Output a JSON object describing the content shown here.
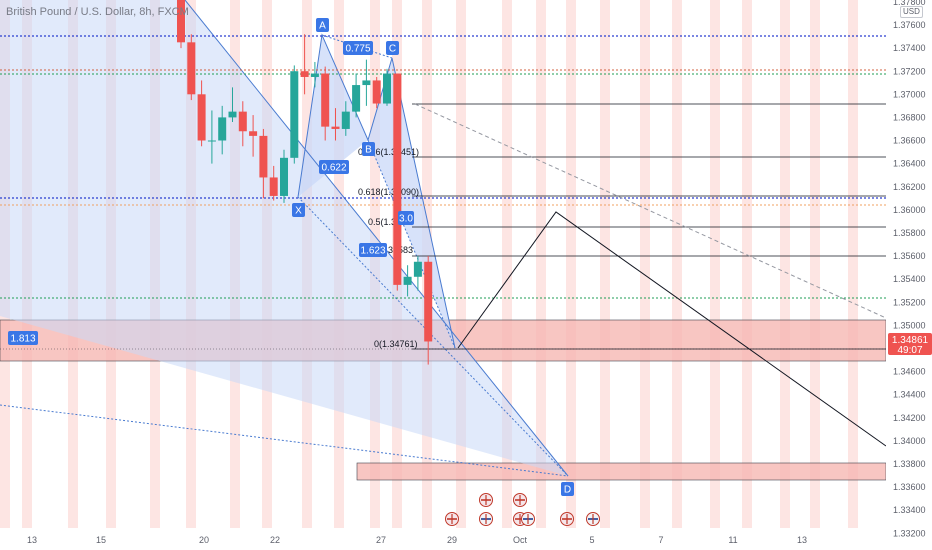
{
  "header": {
    "symbol": "British Pound / U.S. Dollar, 8h, FXCM",
    "currency": "USD"
  },
  "colors": {
    "bull": "#26a69a",
    "bear": "#ef5350",
    "pattern_fill": "#c9d8f8",
    "pattern_line": "#4a7bd0",
    "zone_fill": "#f7b8b4",
    "band": "#fde0de",
    "tag": "#3a76e6",
    "price_tag": "#ef5350",
    "level_blue_dotted": "#2a3fd0",
    "level_red_dotted": "#d06040",
    "level_green_dotted": "#1f9d55",
    "level_orange_dotted": "#f0a060"
  },
  "price_axis": {
    "ticks": [
      "1.37800",
      "1.37600",
      "1.37400",
      "1.37200",
      "1.37000",
      "1.36800",
      "1.36600",
      "1.36400",
      "1.36200",
      "1.36000",
      "1.35800",
      "1.35600",
      "1.35400",
      "1.35200",
      "1.35000",
      "1.34800",
      "1.34600",
      "1.34400",
      "1.34200",
      "1.34000",
      "1.33800",
      "1.33600",
      "1.33400",
      "1.33200"
    ],
    "current_price": "1.34861",
    "countdown": "49:07"
  },
  "time_axis": {
    "labels": [
      "13",
      "15",
      "20",
      "22",
      "27",
      "29",
      "Oct",
      "5",
      "7",
      "11",
      "13"
    ]
  },
  "pattern": {
    "points": [
      "X",
      "A",
      "B",
      "C",
      "D"
    ],
    "ratios": [
      "0.622",
      "0.775",
      "1.623",
      "1.813",
      "3.0"
    ]
  },
  "fib_levels": [
    "0.786(1.36451)",
    "0.618(1.36090)",
    "0.5(1.35",
    "0(1.34761)",
    "35583"
  ],
  "event_icons": [
    "gb-flag-icon",
    "us-flag-icon"
  ],
  "candles": [
    {
      "o": 1.3792,
      "h": 1.38,
      "l": 1.374,
      "c": 1.3745
    },
    {
      "o": 1.3745,
      "h": 1.3752,
      "l": 1.3695,
      "c": 1.37
    },
    {
      "o": 1.37,
      "h": 1.3712,
      "l": 1.3655,
      "c": 1.366
    },
    {
      "o": 1.366,
      "h": 1.3686,
      "l": 1.364,
      "c": 1.366
    },
    {
      "o": 1.366,
      "h": 1.369,
      "l": 1.3648,
      "c": 1.368
    },
    {
      "o": 1.368,
      "h": 1.3706,
      "l": 1.3676,
      "c": 1.3685
    },
    {
      "o": 1.3685,
      "h": 1.3694,
      "l": 1.3655,
      "c": 1.3668
    },
    {
      "o": 1.3668,
      "h": 1.3682,
      "l": 1.3646,
      "c": 1.3664
    },
    {
      "o": 1.3664,
      "h": 1.367,
      "l": 1.361,
      "c": 1.3628
    },
    {
      "o": 1.3628,
      "h": 1.3638,
      "l": 1.3608,
      "c": 1.3612
    },
    {
      "o": 1.3612,
      "h": 1.3652,
      "l": 1.3606,
      "c": 1.3645
    },
    {
      "o": 1.3645,
      "h": 1.3725,
      "l": 1.364,
      "c": 1.372
    },
    {
      "o": 1.372,
      "h": 1.3752,
      "l": 1.37,
      "c": 1.3715
    },
    {
      "o": 1.3715,
      "h": 1.3728,
      "l": 1.3706,
      "c": 1.3718
    },
    {
      "o": 1.3718,
      "h": 1.3724,
      "l": 1.366,
      "c": 1.3672
    },
    {
      "o": 1.3672,
      "h": 1.3688,
      "l": 1.366,
      "c": 1.367
    },
    {
      "o": 1.367,
      "h": 1.3694,
      "l": 1.3664,
      "c": 1.3685
    },
    {
      "o": 1.3685,
      "h": 1.3718,
      "l": 1.368,
      "c": 1.3708
    },
    {
      "o": 1.3708,
      "h": 1.373,
      "l": 1.369,
      "c": 1.3712
    },
    {
      "o": 1.3712,
      "h": 1.3715,
      "l": 1.3688,
      "c": 1.3692
    },
    {
      "o": 1.3692,
      "h": 1.3722,
      "l": 1.369,
      "c": 1.3718
    },
    {
      "o": 1.3718,
      "h": 1.3718,
      "l": 1.353,
      "c": 1.3535
    },
    {
      "o": 1.3535,
      "h": 1.3552,
      "l": 1.3525,
      "c": 1.3542
    },
    {
      "o": 1.3542,
      "h": 1.356,
      "l": 1.353,
      "c": 1.3555
    },
    {
      "o": 1.3555,
      "h": 1.356,
      "l": 1.3466,
      "c": 1.3486
    }
  ]
}
